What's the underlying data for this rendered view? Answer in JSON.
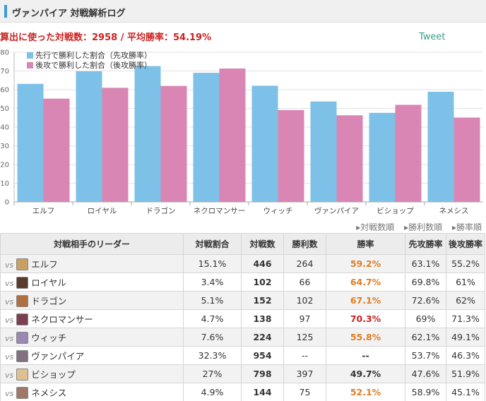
{
  "header": {
    "title": "ヴァンパイア 対戦解析ログ"
  },
  "summary": {
    "text": "算出に使った対戦数：2958 / 平均勝率：54.19%"
  },
  "tweet_label": "Tweet",
  "sort": {
    "by_matches": "▸対戦数順",
    "by_wins": "▸勝利数順",
    "by_rate": "▸勝率順"
  },
  "colors": {
    "first": "#7dc0e8",
    "second": "#d986b4",
    "rate_orange": "#e07d24",
    "rate_red": "#cc2222"
  },
  "chart_data": {
    "type": "bar",
    "categories": [
      "エルフ",
      "ロイヤル",
      "ドラゴン",
      "ネクロマンサー",
      "ウィッチ",
      "ヴァンパイア",
      "ビショップ",
      "ネメシス"
    ],
    "series": [
      {
        "name": "先行で勝利した割合（先攻勝率）",
        "values": [
          63.1,
          69.8,
          72.6,
          69,
          62.1,
          53.7,
          47.6,
          58.9
        ]
      },
      {
        "name": "後攻で勝利した割合（後攻勝率）",
        "values": [
          55.2,
          61,
          62,
          71.3,
          49.1,
          46.3,
          51.9,
          45.1
        ]
      }
    ],
    "ylim": [
      0,
      80
    ],
    "yticks": [
      0,
      10,
      20,
      30,
      40,
      50,
      60,
      70,
      80
    ],
    "legend": "top-left",
    "grid": true
  },
  "table": {
    "headers": [
      "対戦相手のリーダー",
      "対戦割合",
      "対戦数",
      "勝利数",
      "勝率",
      "先攻勝率",
      "後攻勝率"
    ],
    "vs_label": "vs",
    "rows": [
      {
        "leader": "エルフ",
        "ratio": "15.1%",
        "matches": "446",
        "wins": "264",
        "rate": "59.2%",
        "first": "63.1%",
        "second": "55.2%",
        "rate_color": "orange",
        "avatar": "#c8a060"
      },
      {
        "leader": "ロイヤル",
        "ratio": "3.4%",
        "matches": "102",
        "wins": "66",
        "rate": "64.7%",
        "first": "69.8%",
        "second": "61%",
        "rate_color": "orange",
        "avatar": "#5a3a2a"
      },
      {
        "leader": "ドラゴン",
        "ratio": "5.1%",
        "matches": "152",
        "wins": "102",
        "rate": "67.1%",
        "first": "72.6%",
        "second": "62%",
        "rate_color": "orange",
        "avatar": "#b07040"
      },
      {
        "leader": "ネクロマンサー",
        "ratio": "4.7%",
        "matches": "138",
        "wins": "97",
        "rate": "70.3%",
        "first": "69%",
        "second": "71.3%",
        "rate_color": "red",
        "avatar": "#7a4050"
      },
      {
        "leader": "ウィッチ",
        "ratio": "7.6%",
        "matches": "224",
        "wins": "125",
        "rate": "55.8%",
        "first": "62.1%",
        "second": "49.1%",
        "rate_color": "orange",
        "avatar": "#9a88b0"
      },
      {
        "leader": "ヴァンパイア",
        "ratio": "32.3%",
        "matches": "954",
        "wins": "--",
        "rate": "--",
        "first": "53.7%",
        "second": "46.3%",
        "rate_color": "plain",
        "avatar": "#807080"
      },
      {
        "leader": "ビショップ",
        "ratio": "27%",
        "matches": "798",
        "wins": "397",
        "rate": "49.7%",
        "first": "47.6%",
        "second": "51.9%",
        "rate_color": "plain",
        "avatar": "#e0c090"
      },
      {
        "leader": "ネメシス",
        "ratio": "4.9%",
        "matches": "144",
        "wins": "75",
        "rate": "52.1%",
        "first": "58.9%",
        "second": "45.1%",
        "rate_color": "orange",
        "avatar": "#a07868"
      }
    ]
  }
}
